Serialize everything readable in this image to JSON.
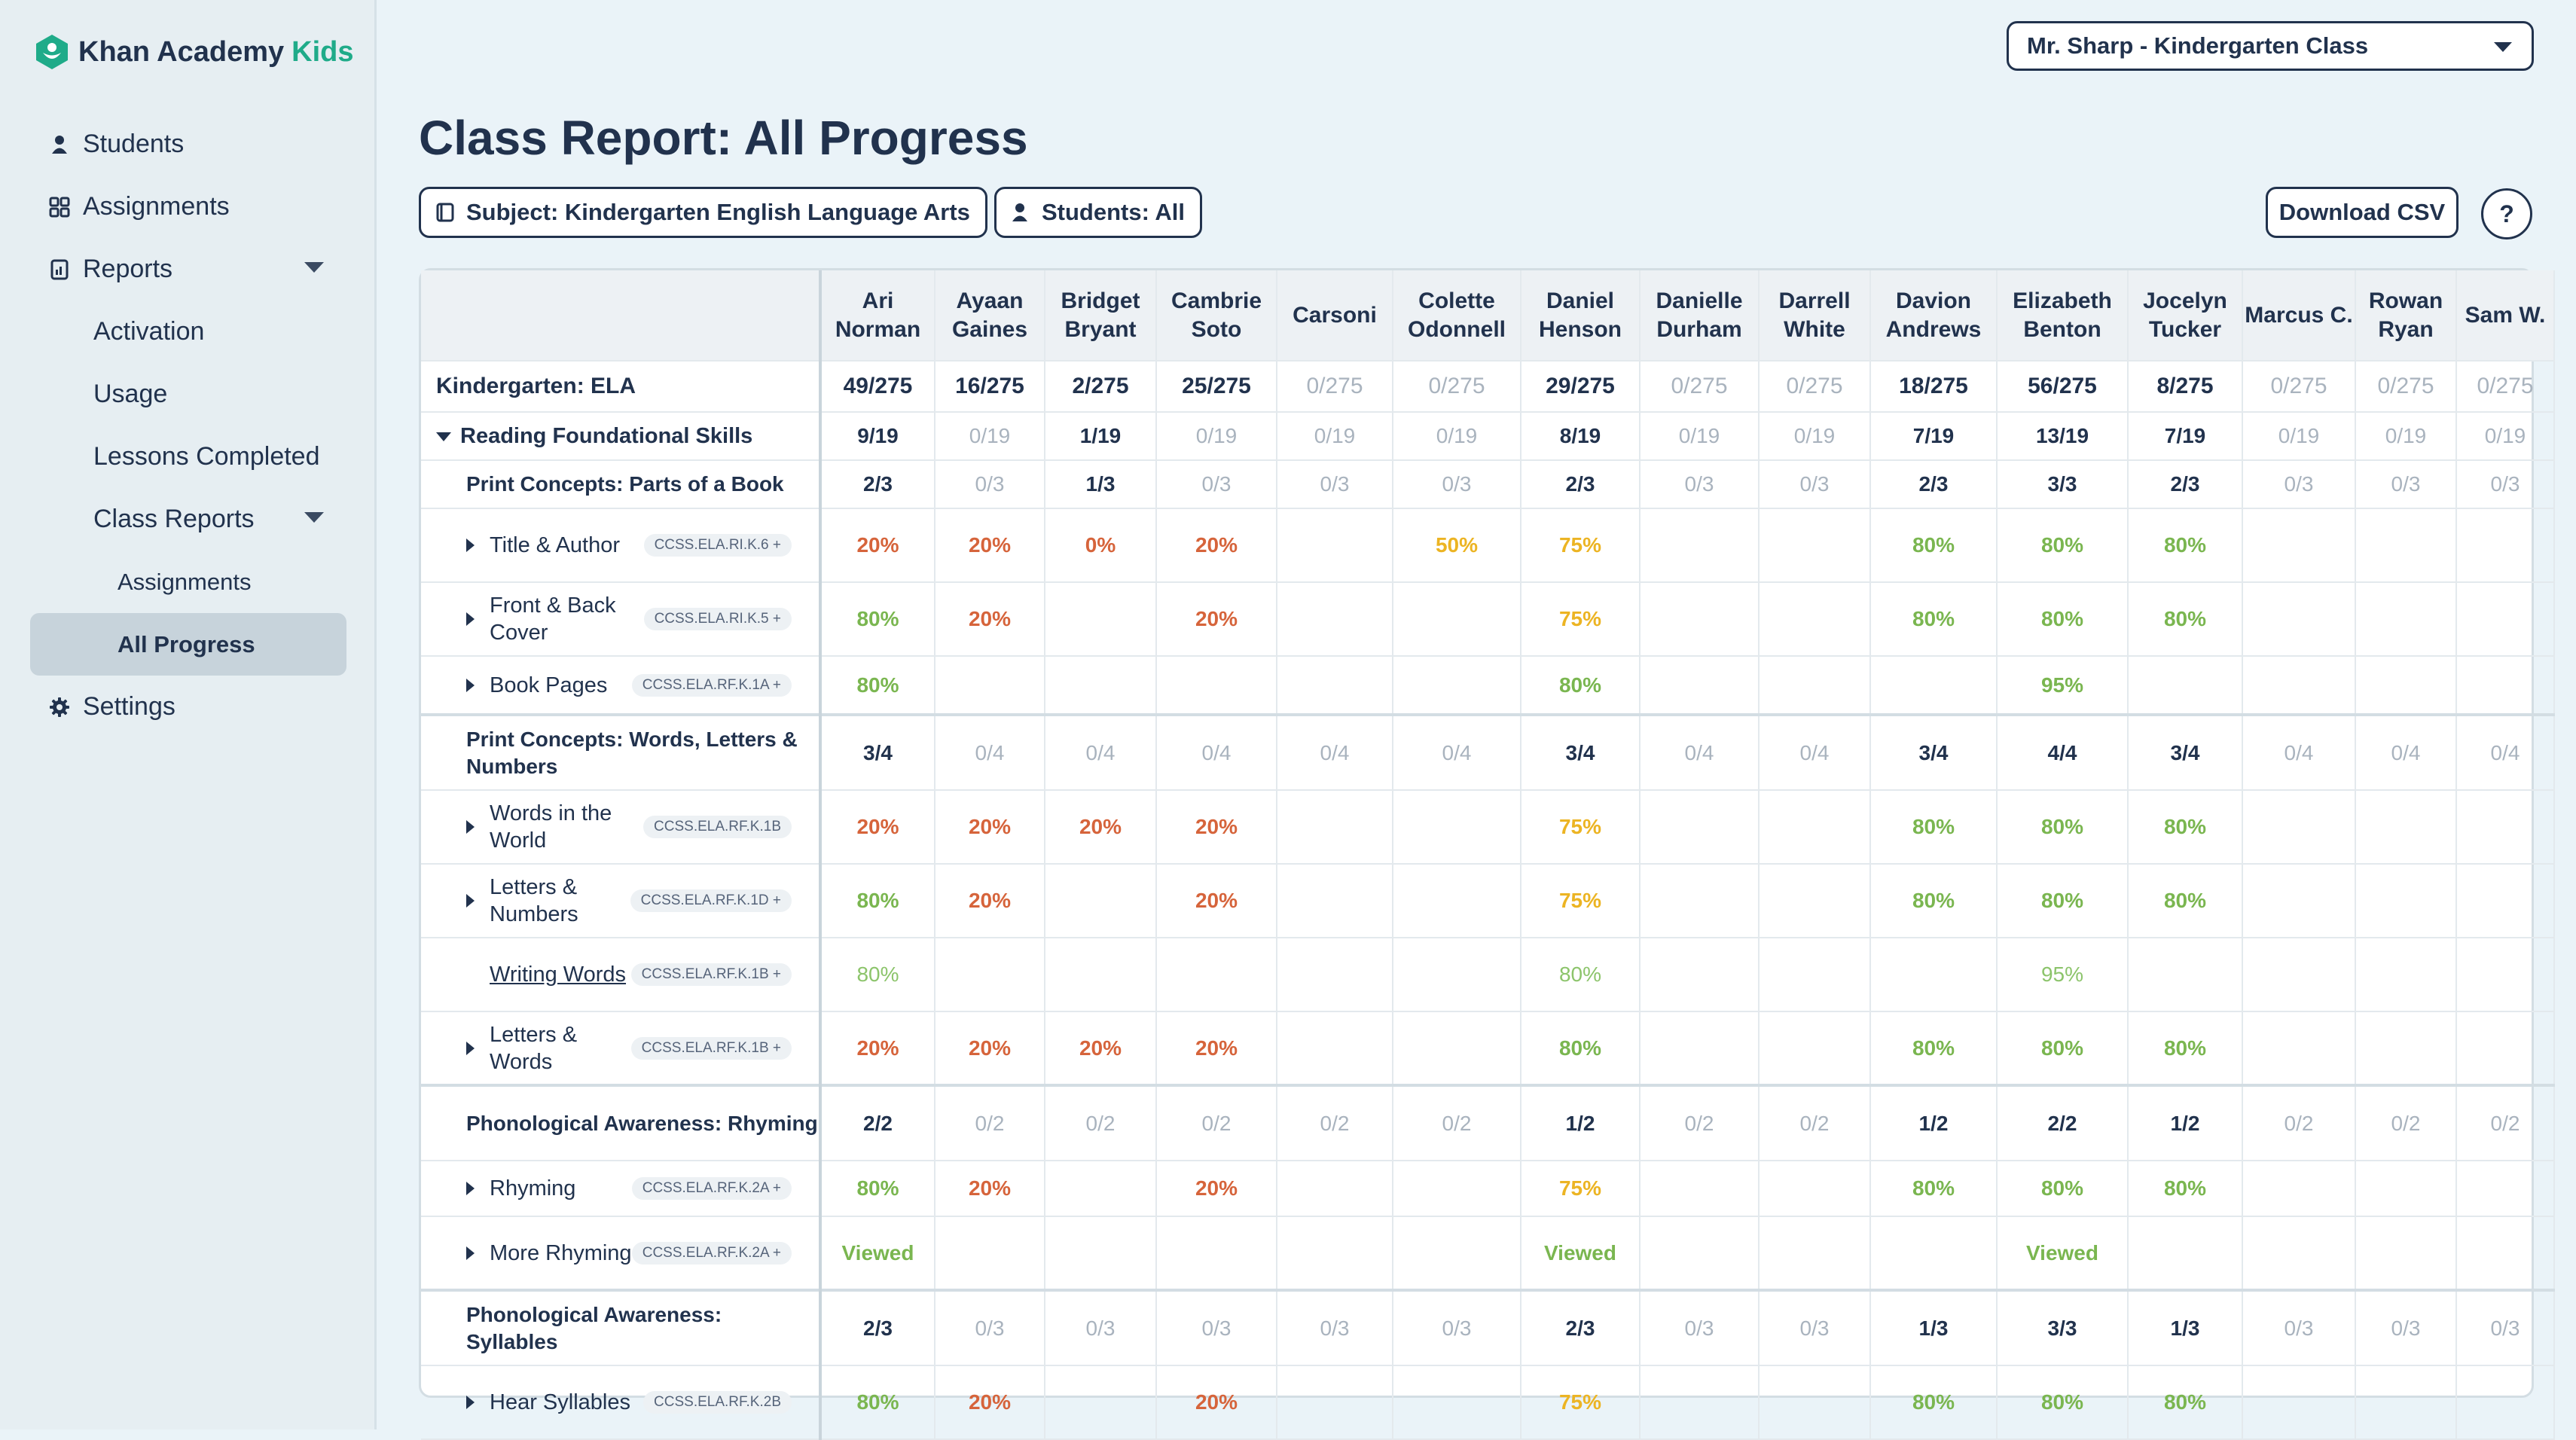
{
  "app": {
    "brand": "Khan Academy",
    "brand_suffix": "Kids"
  },
  "sidebar": {
    "items": [
      {
        "label": "Students",
        "icon": "person-icon"
      },
      {
        "label": "Assignments",
        "icon": "grid-icon"
      },
      {
        "label": "Reports",
        "icon": "report-icon"
      },
      {
        "label": "Activation"
      },
      {
        "label": "Usage"
      },
      {
        "label": "Lessons Completed"
      },
      {
        "label": "Class Reports"
      },
      {
        "label": "Assignments"
      },
      {
        "label": "All Progress"
      },
      {
        "label": "Settings",
        "icon": "gear-icon"
      }
    ]
  },
  "header": {
    "class_select": "Mr. Sharp - Kindergarten Class",
    "title": "Class Report: All Progress",
    "subject_filter": "Subject: Kindergarten English Language Arts",
    "students_filter": "Students: All",
    "download": "Download CSV",
    "help": "?"
  },
  "colors": {
    "red": "#d6643b",
    "green": "#7ab650",
    "yellow": "#ecb423",
    "muted": "#a9b3be",
    "navy": "#21324d"
  },
  "table": {
    "students": [
      "Ari Norman",
      "Ayaan Gaines",
      "Bridget Bryant",
      "Cambrie Soto",
      "Carsoni",
      "Colette Odonnell",
      "Daniel Henson",
      "Danielle Durham",
      "Darrell White",
      "Davion Andrews",
      "Elizabeth Benton",
      "Jocelyn Tucker",
      "Marcus C.",
      "Rowan Ryan",
      "Sam W."
    ],
    "rows": [
      {
        "type": "course",
        "label": "Kindergarten: ELA",
        "cells": [
          [
            "49/275",
            "d"
          ],
          [
            "16/275",
            "d"
          ],
          [
            "2/275",
            "d"
          ],
          [
            "25/275",
            "d"
          ],
          [
            "0/275",
            "m"
          ],
          [
            "0/275",
            "m"
          ],
          [
            "29/275",
            "d"
          ],
          [
            "0/275",
            "m"
          ],
          [
            "0/275",
            "m"
          ],
          [
            "18/275",
            "d"
          ],
          [
            "56/275",
            "d"
          ],
          [
            "8/275",
            "d"
          ],
          [
            "0/275",
            "m"
          ],
          [
            "0/275",
            "m"
          ],
          [
            "0/275",
            "m"
          ]
        ]
      },
      {
        "type": "domain",
        "label": "Reading Foundational Skills",
        "cells": [
          [
            "9/19",
            "d"
          ],
          [
            "0/19",
            "m"
          ],
          [
            "1/19",
            "d"
          ],
          [
            "0/19",
            "m"
          ],
          [
            "0/19",
            "m"
          ],
          [
            "0/19",
            "m"
          ],
          [
            "8/19",
            "d"
          ],
          [
            "0/19",
            "m"
          ],
          [
            "0/19",
            "m"
          ],
          [
            "7/19",
            "d"
          ],
          [
            "13/19",
            "d"
          ],
          [
            "7/19",
            "d"
          ],
          [
            "0/19",
            "m"
          ],
          [
            "0/19",
            "m"
          ],
          [
            "0/19",
            "m"
          ]
        ]
      },
      {
        "type": "group",
        "label": "Print Concepts: Parts of a Book",
        "h": 64,
        "cells": [
          [
            "2/3",
            "d"
          ],
          [
            "0/3",
            "m"
          ],
          [
            "1/3",
            "d"
          ],
          [
            "0/3",
            "m"
          ],
          [
            "0/3",
            "m"
          ],
          [
            "0/3",
            "m"
          ],
          [
            "2/3",
            "d"
          ],
          [
            "0/3",
            "m"
          ],
          [
            "0/3",
            "m"
          ],
          [
            "2/3",
            "d"
          ],
          [
            "3/3",
            "d"
          ],
          [
            "2/3",
            "d"
          ],
          [
            "0/3",
            "m"
          ],
          [
            "0/3",
            "m"
          ],
          [
            "0/3",
            "m"
          ]
        ]
      },
      {
        "type": "skill",
        "label": "Title & Author",
        "std": "CCSS.ELA.RI.K.6 +",
        "h": 98,
        "cells": [
          [
            "20%",
            "r"
          ],
          [
            "20%",
            "r"
          ],
          [
            "0%",
            "r"
          ],
          [
            "20%",
            "r"
          ],
          [
            "",
            ""
          ],
          [
            "50%",
            "y"
          ],
          [
            "75%",
            "y"
          ],
          [
            "",
            ""
          ],
          [
            "",
            ""
          ],
          [
            "80%",
            "g"
          ],
          [
            "80%",
            "g"
          ],
          [
            "80%",
            "g"
          ],
          [
            "",
            ""
          ],
          [
            "",
            ""
          ],
          [
            "",
            ""
          ]
        ]
      },
      {
        "type": "skill",
        "label": "Front & Back Cover",
        "std": "CCSS.ELA.RI.K.5 +",
        "h": 98,
        "cells": [
          [
            "80%",
            "g"
          ],
          [
            "20%",
            "r"
          ],
          [
            "",
            ""
          ],
          [
            "20%",
            "r"
          ],
          [
            "",
            ""
          ],
          [
            "",
            ""
          ],
          [
            "75%",
            "y"
          ],
          [
            "",
            ""
          ],
          [
            "",
            ""
          ],
          [
            "80%",
            "g"
          ],
          [
            "80%",
            "g"
          ],
          [
            "80%",
            "g"
          ],
          [
            "",
            ""
          ],
          [
            "",
            ""
          ],
          [
            "",
            ""
          ]
        ]
      },
      {
        "type": "skill",
        "label": "Book Pages",
        "std": "CCSS.ELA.RF.K.1A +",
        "h": 78,
        "cells": [
          [
            "80%",
            "g"
          ],
          [
            "",
            ""
          ],
          [
            "",
            ""
          ],
          [
            "",
            ""
          ],
          [
            "",
            ""
          ],
          [
            "",
            ""
          ],
          [
            "80%",
            "g"
          ],
          [
            "",
            ""
          ],
          [
            "",
            ""
          ],
          [
            "",
            ""
          ],
          [
            "95%",
            "g"
          ],
          [
            "",
            ""
          ],
          [
            "",
            ""
          ],
          [
            "",
            ""
          ],
          [
            "",
            ""
          ]
        ]
      },
      {
        "type": "group",
        "sep": true,
        "label": "Print Concepts: Words, Letters & Numbers",
        "h": 100,
        "cells": [
          [
            "3/4",
            "d"
          ],
          [
            "0/4",
            "m"
          ],
          [
            "0/4",
            "m"
          ],
          [
            "0/4",
            "m"
          ],
          [
            "0/4",
            "m"
          ],
          [
            "0/4",
            "m"
          ],
          [
            "3/4",
            "d"
          ],
          [
            "0/4",
            "m"
          ],
          [
            "0/4",
            "m"
          ],
          [
            "3/4",
            "d"
          ],
          [
            "4/4",
            "d"
          ],
          [
            "3/4",
            "d"
          ],
          [
            "0/4",
            "m"
          ],
          [
            "0/4",
            "m"
          ],
          [
            "0/4",
            "m"
          ]
        ]
      },
      {
        "type": "skill",
        "label": "Words in the World",
        "std": "CCSS.ELA.RF.K.1B",
        "h": 98,
        "cells": [
          [
            "20%",
            "r"
          ],
          [
            "20%",
            "r"
          ],
          [
            "20%",
            "r"
          ],
          [
            "20%",
            "r"
          ],
          [
            "",
            ""
          ],
          [
            "",
            ""
          ],
          [
            "75%",
            "y"
          ],
          [
            "",
            ""
          ],
          [
            "",
            ""
          ],
          [
            "80%",
            "g"
          ],
          [
            "80%",
            "g"
          ],
          [
            "80%",
            "g"
          ],
          [
            "",
            ""
          ],
          [
            "",
            ""
          ],
          [
            "",
            ""
          ]
        ]
      },
      {
        "type": "skill",
        "label": "Letters & Numbers",
        "std": "CCSS.ELA.RF.K.1D +",
        "h": 98,
        "cells": [
          [
            "80%",
            "g"
          ],
          [
            "20%",
            "r"
          ],
          [
            "",
            ""
          ],
          [
            "20%",
            "r"
          ],
          [
            "",
            ""
          ],
          [
            "",
            ""
          ],
          [
            "75%",
            "y"
          ],
          [
            "",
            ""
          ],
          [
            "",
            ""
          ],
          [
            "80%",
            "g"
          ],
          [
            "80%",
            "g"
          ],
          [
            "80%",
            "g"
          ],
          [
            "",
            ""
          ],
          [
            "",
            ""
          ],
          [
            "",
            ""
          ]
        ]
      },
      {
        "type": "skill",
        "label": "Writing Words",
        "std": "CCSS.ELA.RF.K.1B +",
        "h": 98,
        "link": true,
        "notri": true,
        "cells": [
          [
            "80%",
            "gl"
          ],
          [
            "",
            ""
          ],
          [
            "",
            ""
          ],
          [
            "",
            ""
          ],
          [
            "",
            ""
          ],
          [
            "",
            ""
          ],
          [
            "80%",
            "gl"
          ],
          [
            "",
            ""
          ],
          [
            "",
            ""
          ],
          [
            "",
            ""
          ],
          [
            "95%",
            "gl"
          ],
          [
            "",
            ""
          ],
          [
            "",
            ""
          ],
          [
            "",
            ""
          ],
          [
            "",
            ""
          ]
        ]
      },
      {
        "type": "skill",
        "label": "Letters & Words",
        "std": "CCSS.ELA.RF.K.1B +",
        "h": 98,
        "cells": [
          [
            "20%",
            "r"
          ],
          [
            "20%",
            "r"
          ],
          [
            "20%",
            "r"
          ],
          [
            "20%",
            "r"
          ],
          [
            "",
            ""
          ],
          [
            "",
            ""
          ],
          [
            "80%",
            "g"
          ],
          [
            "",
            ""
          ],
          [
            "",
            ""
          ],
          [
            "80%",
            "g"
          ],
          [
            "80%",
            "g"
          ],
          [
            "80%",
            "g"
          ],
          [
            "",
            ""
          ],
          [
            "",
            ""
          ],
          [
            "",
            ""
          ]
        ]
      },
      {
        "type": "group",
        "sep": true,
        "label": "Phonological Awareness: Rhyming",
        "h": 100,
        "cells": [
          [
            "2/2",
            "d"
          ],
          [
            "0/2",
            "m"
          ],
          [
            "0/2",
            "m"
          ],
          [
            "0/2",
            "m"
          ],
          [
            "0/2",
            "m"
          ],
          [
            "0/2",
            "m"
          ],
          [
            "1/2",
            "d"
          ],
          [
            "0/2",
            "m"
          ],
          [
            "0/2",
            "m"
          ],
          [
            "1/2",
            "d"
          ],
          [
            "2/2",
            "d"
          ],
          [
            "1/2",
            "d"
          ],
          [
            "0/2",
            "m"
          ],
          [
            "0/2",
            "m"
          ],
          [
            "0/2",
            "m"
          ]
        ]
      },
      {
        "type": "skill",
        "label": "Rhyming",
        "std": "CCSS.ELA.RF.K.2A +",
        "h": 74,
        "cells": [
          [
            "80%",
            "g"
          ],
          [
            "20%",
            "r"
          ],
          [
            "",
            ""
          ],
          [
            "20%",
            "r"
          ],
          [
            "",
            ""
          ],
          [
            "",
            ""
          ],
          [
            "75%",
            "y"
          ],
          [
            "",
            ""
          ],
          [
            "",
            ""
          ],
          [
            "80%",
            "g"
          ],
          [
            "80%",
            "g"
          ],
          [
            "80%",
            "g"
          ],
          [
            "",
            ""
          ],
          [
            "",
            ""
          ],
          [
            "",
            ""
          ]
        ]
      },
      {
        "type": "skill",
        "label": "More Rhyming",
        "std": "CCSS.ELA.RF.K.2A +",
        "h": 98,
        "cells": [
          [
            "Viewed",
            "v"
          ],
          [
            "",
            ""
          ],
          [
            "",
            ""
          ],
          [
            "",
            ""
          ],
          [
            "",
            ""
          ],
          [
            "",
            ""
          ],
          [
            "Viewed",
            "v"
          ],
          [
            "",
            ""
          ],
          [
            "",
            ""
          ],
          [
            "",
            ""
          ],
          [
            "Viewed",
            "v"
          ],
          [
            "",
            ""
          ],
          [
            "",
            ""
          ],
          [
            "",
            ""
          ],
          [
            "",
            ""
          ]
        ]
      },
      {
        "type": "group",
        "sep": true,
        "label": "Phonological Awareness: Syllables",
        "h": 100,
        "cells": [
          [
            "2/3",
            "d"
          ],
          [
            "0/3",
            "m"
          ],
          [
            "0/3",
            "m"
          ],
          [
            "0/3",
            "m"
          ],
          [
            "0/3",
            "m"
          ],
          [
            "0/3",
            "m"
          ],
          [
            "2/3",
            "d"
          ],
          [
            "0/3",
            "m"
          ],
          [
            "0/3",
            "m"
          ],
          [
            "1/3",
            "d"
          ],
          [
            "3/3",
            "d"
          ],
          [
            "1/3",
            "d"
          ],
          [
            "0/3",
            "m"
          ],
          [
            "0/3",
            "m"
          ],
          [
            "0/3",
            "m"
          ]
        ]
      },
      {
        "type": "skill",
        "label": "Hear Syllables",
        "std": "CCSS.ELA.RF.K.2B",
        "h": 98,
        "cells": [
          [
            "80%",
            "g"
          ],
          [
            "20%",
            "r"
          ],
          [
            "",
            ""
          ],
          [
            "20%",
            "r"
          ],
          [
            "",
            ""
          ],
          [
            "",
            ""
          ],
          [
            "75%",
            "y"
          ],
          [
            "",
            ""
          ],
          [
            "",
            ""
          ],
          [
            "80%",
            "g"
          ],
          [
            "80%",
            "g"
          ],
          [
            "80%",
            "g"
          ],
          [
            "",
            ""
          ],
          [
            "",
            ""
          ],
          [
            "",
            ""
          ]
        ]
      }
    ]
  }
}
